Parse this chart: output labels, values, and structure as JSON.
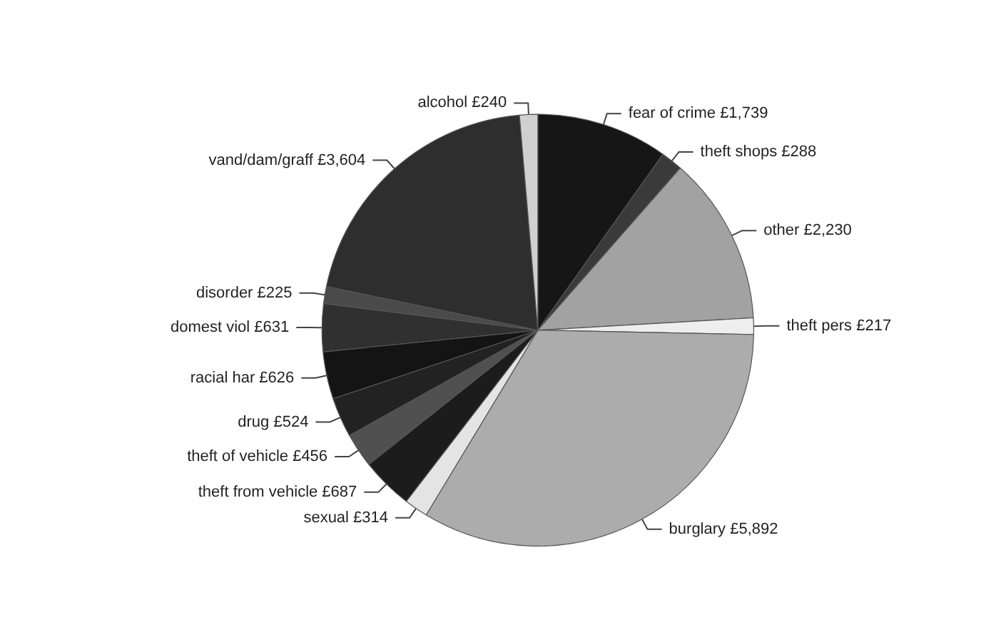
{
  "chart_data": {
    "type": "pie",
    "categories": [
      "fear of crime",
      "theft shops",
      "other",
      "theft pers",
      "burglary",
      "sexual",
      "theft from vehicle",
      "theft of vehicle",
      "drug",
      "racial har",
      "domest viol",
      "disorder",
      "vand/dam/graff",
      "alcohol"
    ],
    "values": [
      1739,
      288,
      2230,
      217,
      5892,
      314,
      687,
      456,
      524,
      626,
      631,
      225,
      3604,
      240
    ],
    "value_labels": [
      "£1,739",
      "£288",
      "£2,230",
      "£217",
      "£5,892",
      "£314",
      "£687",
      "£456",
      "£524",
      "£626",
      "£631",
      "£225",
      "£3,604",
      "£240"
    ],
    "colors": [
      "#161616",
      "#3a3a3a",
      "#a2a2a2",
      "#eeeeee",
      "#acacac",
      "#e4e4e4",
      "#1c1c1c",
      "#505050",
      "#222222",
      "#141414",
      "#303030",
      "#4a4a4a",
      "#2e2e2e",
      "#d0d0d0"
    ],
    "legend": false
  }
}
